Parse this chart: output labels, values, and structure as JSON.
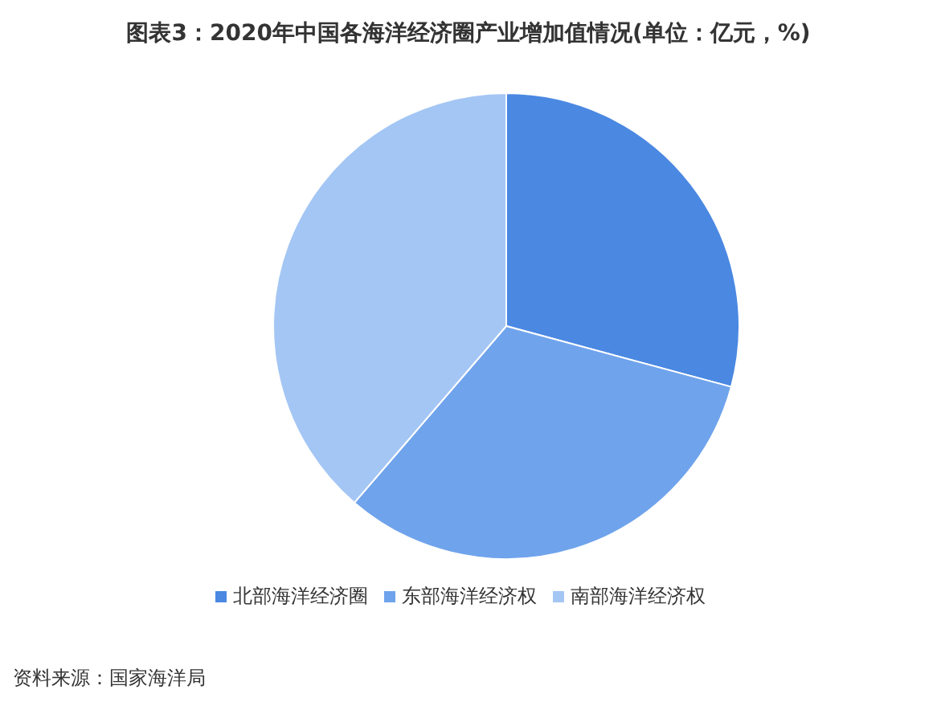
{
  "chart_data": {
    "type": "pie",
    "title": "图表3：2020年中国各海洋经济圈产业增加值情况(单位：亿元，%)",
    "categories": [
      "北部海洋经济圈",
      "东部海洋经济权",
      "南部海洋经济权"
    ],
    "values": [
      29.2,
      32.1,
      38.7
    ],
    "colors": [
      "#4a88e2",
      "#6fa3ec",
      "#a4c6f4"
    ],
    "legend": "bottom",
    "annotations": [
      "资料来源：国家海洋局"
    ]
  }
}
